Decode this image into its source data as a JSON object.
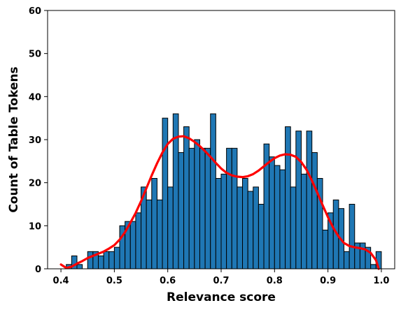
{
  "chart_data": {
    "type": "bar",
    "subtype": "histogram",
    "xlabel": "Relevance score",
    "ylabel": "Count of Table Tokens",
    "xlim": [
      0.375,
      1.025
    ],
    "ylim": [
      0,
      60
    ],
    "xticks": [
      0.4,
      0.5,
      0.6,
      0.7,
      0.8,
      0.9,
      1.0
    ],
    "xtick_labels": [
      "0.4",
      "0.5",
      "0.6",
      "0.7",
      "0.8",
      "0.9",
      "1.0"
    ],
    "yticks": [
      0,
      10,
      20,
      30,
      40,
      50,
      60
    ],
    "ytick_labels": [
      "0",
      "10",
      "20",
      "30",
      "40",
      "50",
      "60"
    ],
    "grid": false,
    "bin_start": 0.41,
    "bin_width": 0.01,
    "values": [
      1,
      3,
      1,
      0,
      4,
      4,
      3,
      4,
      4,
      5,
      10,
      11,
      11,
      13,
      19,
      16,
      21,
      16,
      35,
      19,
      36,
      27,
      33,
      28,
      30,
      28,
      28,
      36,
      21,
      22,
      28,
      28,
      19,
      21,
      18,
      19,
      15,
      29,
      26,
      24,
      23,
      33,
      19,
      32,
      22,
      32,
      27,
      21,
      9,
      13,
      16,
      14,
      4,
      15,
      6,
      6,
      5,
      1,
      4
    ],
    "bar_color": "#1f77b4",
    "bar_edge_color": "#000000",
    "kde": {
      "color": "#ff0000",
      "x": [
        0.4,
        0.41,
        0.42,
        0.43,
        0.44,
        0.45,
        0.46,
        0.47,
        0.48,
        0.49,
        0.5,
        0.51,
        0.52,
        0.53,
        0.54,
        0.55,
        0.56,
        0.57,
        0.58,
        0.59,
        0.6,
        0.61,
        0.62,
        0.63,
        0.64,
        0.65,
        0.66,
        0.67,
        0.68,
        0.69,
        0.7,
        0.71,
        0.72,
        0.73,
        0.74,
        0.75,
        0.76,
        0.77,
        0.78,
        0.79,
        0.8,
        0.81,
        0.82,
        0.83,
        0.84,
        0.85,
        0.86,
        0.87,
        0.88,
        0.89,
        0.9,
        0.91,
        0.92,
        0.93,
        0.94,
        0.95,
        0.96,
        0.97,
        0.98,
        0.99,
        0.995
      ],
      "y": [
        1.0,
        0.2,
        0.5,
        1.2,
        1.8,
        2.5,
        3.0,
        3.5,
        4.0,
        4.7,
        5.5,
        6.8,
        8.5,
        10.7,
        13.0,
        15.7,
        18.7,
        21.7,
        24.5,
        27.0,
        29.0,
        30.2,
        30.7,
        30.8,
        30.3,
        29.5,
        28.5,
        27.3,
        26.0,
        24.6,
        23.3,
        22.3,
        21.7,
        21.4,
        21.3,
        21.5,
        22.0,
        22.8,
        23.8,
        24.8,
        25.7,
        26.3,
        26.6,
        26.5,
        26.0,
        24.8,
        23.0,
        20.5,
        17.7,
        14.8,
        12.0,
        9.5,
        7.5,
        6.0,
        5.3,
        5.0,
        4.8,
        4.5,
        3.7,
        2.0,
        0.0
      ]
    }
  }
}
